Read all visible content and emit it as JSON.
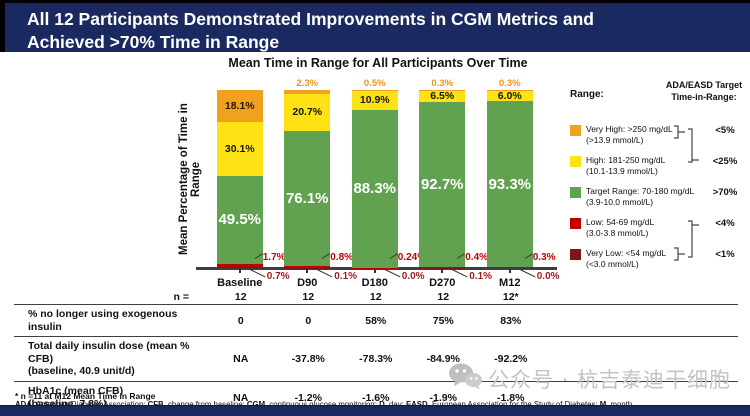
{
  "banner": {
    "title": "All 12 Participants Demonstrated Improvements in CGM Metrics and Achieved >70% Time in Range"
  },
  "chart_data": {
    "type": "bar",
    "subtype": "stacked-percent",
    "title": "Mean Time in Range for All Participants Over Time",
    "ylabel": "Mean Percentage of Time in Range",
    "ylim": [
      0,
      100
    ],
    "grid": false,
    "categories": [
      "Baseline",
      "D90",
      "D180",
      "D270",
      "M12"
    ],
    "series": [
      {
        "name": "Very Low: <54 mg/dL (<3.0 mmol/L)",
        "color": "#7e1416",
        "values": [
          0.7,
          0.1,
          0.0,
          0.1,
          0.0
        ]
      },
      {
        "name": "Low: 54-69 mg/dL (3.0-3.8 mmol/L)",
        "color": "#c00000",
        "values": [
          1.7,
          0.8,
          0.24,
          0.4,
          0.3
        ]
      },
      {
        "name": "Target Range: 70-180 mg/dL (3.9-10.0 mmol/L)",
        "color": "#60a24f",
        "values": [
          49.5,
          76.1,
          88.3,
          92.7,
          93.3
        ]
      },
      {
        "name": "High: 181-250 mg/dL (10.1-13.9 mmol/L)",
        "color": "#ffe215",
        "values": [
          30.1,
          20.7,
          10.9,
          6.5,
          6.0
        ]
      },
      {
        "name": "Very High: >250 mg/dL (>13.9 mmol/L)",
        "color": "#f0a11e",
        "values": [
          18.1,
          2.3,
          0.5,
          0.3,
          0.3
        ]
      }
    ],
    "labels": {
      "very_low": [
        "0.7%",
        "0.1%",
        "0.0%",
        "0.1%",
        "0.0%"
      ],
      "low": [
        "1.7%",
        "0.8%",
        "0.24%",
        "0.4%",
        "0.3%"
      ],
      "target": [
        "49.5%",
        "76.1%",
        "88.3%",
        "92.7%",
        "93.3%"
      ],
      "high": [
        "30.1%",
        "20.7%",
        "10.9%",
        "6.5%",
        "6.0%"
      ],
      "very_high_inside": [
        "18.1%",
        null,
        null,
        null,
        null
      ],
      "very_high_above": [
        null,
        "2.3%",
        "0.5%",
        "0.3%",
        "0.3%"
      ]
    }
  },
  "legend": {
    "range_header": "Range:",
    "target_header": "ADA/EASD Target Time-in-Range:",
    "items": [
      {
        "swatch": "#f0a11e",
        "line1": "Very High: >250 mg/dL",
        "line2": "(>13.9 mmol/L)",
        "target": "<5%"
      },
      {
        "swatch": "#ffe215",
        "line1": "High: 181-250 mg/dL",
        "line2": "(10.1-13.9 mmol/L)",
        "target": "<25%"
      },
      {
        "swatch": "#60a24f",
        "line1": "Target Range: 70-180 mg/dL",
        "line2": "(3.9-10.0 mmol/L)",
        "target": ">70%"
      },
      {
        "swatch": "#c00000",
        "line1": "Low: 54-69 mg/dL",
        "line2": "(3.0-3.8 mmol/L)",
        "target": "<4%"
      },
      {
        "swatch": "#7e1416",
        "line1": "Very Low: <54 mg/dL",
        "line2": "(<3.0 mmol/L)",
        "target": "<1%"
      }
    ]
  },
  "table": {
    "n_label": "n =",
    "n_values": [
      "12",
      "12",
      "12",
      "12",
      "12*"
    ],
    "rows": [
      {
        "label": "% no longer using exogenous insulin",
        "sublabel": "",
        "values": [
          "0",
          "0",
          "58%",
          "75%",
          "83%"
        ],
        "height": 25
      },
      {
        "label": "Total daily insulin dose (mean % CFB)",
        "sublabel": "(baseline, 40.9 unit/d)",
        "values": [
          "NA",
          "-37.8%",
          "-78.3%",
          "-84.9%",
          "-92.2%"
        ],
        "height": 33
      },
      {
        "label": "HbA1c (mean CFB)",
        "sublabel": "(baseline, 7.8%)",
        "values": [
          "NA",
          "-1.2%",
          "-1.6%",
          "-1.9%",
          "-1.8%"
        ],
        "height": 31
      }
    ]
  },
  "footnotes": {
    "line1": "* n =11 at M12 Mean Time in Range",
    "abbrev_parts": [
      {
        "t": "ADA",
        "b": true
      },
      {
        "t": ", American Diabetes Association;  ",
        "b": false
      },
      {
        "t": "CFB",
        "b": true
      },
      {
        "t": ", change from baseline; ",
        "b": false
      },
      {
        "t": "CGM",
        "b": true
      },
      {
        "t": ", continuous glucose monitoring; ",
        "b": false
      },
      {
        "t": "D",
        "b": true
      },
      {
        "t": ", day; ",
        "b": false
      },
      {
        "t": "EASD",
        "b": true
      },
      {
        "t": ", European Association for the Study of Diabetes; ",
        "b": false
      },
      {
        "t": "M",
        "b": true
      },
      {
        "t": ", month",
        "b": false
      }
    ]
  },
  "watermark": {
    "text": "公众号 · 杭吉泰迪干细胞"
  },
  "colors": {
    "banner_navy": "#1a2a60",
    "very_high": "#f0a11e",
    "high": "#ffe215",
    "target": "#60a24f",
    "low": "#c00000",
    "very_low": "#7e1416",
    "low_label_text": "#c00000",
    "very_low_label_text": "#9e1b1e",
    "above_label_text": "#e8961b"
  }
}
